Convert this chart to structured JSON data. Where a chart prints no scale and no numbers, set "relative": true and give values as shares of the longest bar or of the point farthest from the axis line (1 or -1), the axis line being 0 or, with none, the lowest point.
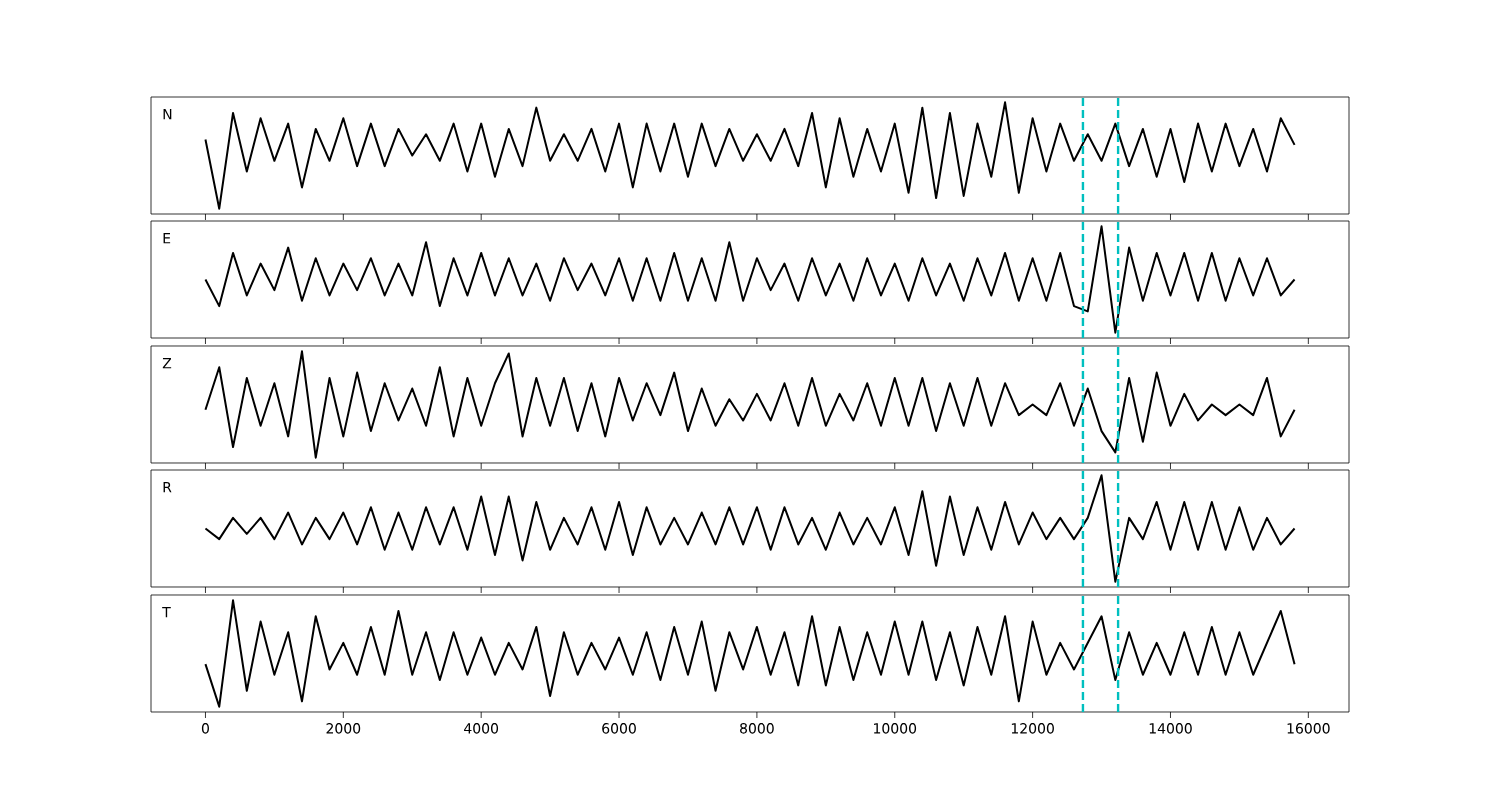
{
  "chart_data": [
    {
      "type": "line",
      "title": "N",
      "relative": true,
      "color": "#000000",
      "tick_labels": false,
      "xlim": [
        -790,
        16590
      ],
      "xticks": [
        0,
        2000,
        4000,
        6000,
        8000,
        10000,
        12000,
        14000,
        16000
      ],
      "x": [
        0,
        200,
        400,
        600,
        800,
        1000,
        1200,
        1400,
        1600,
        1800,
        2000,
        2200,
        2400,
        2600,
        2800,
        3000,
        3200,
        3400,
        3600,
        3800,
        4000,
        4200,
        4400,
        4600,
        4800,
        5000,
        5200,
        5400,
        5600,
        5800,
        6000,
        6200,
        6400,
        6600,
        6800,
        7000,
        7200,
        7400,
        7600,
        7800,
        8000,
        8200,
        8400,
        8600,
        8800,
        9000,
        9200,
        9400,
        9600,
        9800,
        10000,
        10200,
        10400,
        10600,
        10800,
        11000,
        11200,
        11400,
        11600,
        11800,
        12000,
        12200,
        12400,
        12600,
        12800,
        13000,
        13200,
        13400,
        13600,
        13800,
        14000,
        14200,
        14400,
        14600,
        14800,
        15000,
        15200,
        15400,
        15600,
        15800
      ],
      "values": [
        0.65,
        0.0,
        0.9,
        0.35,
        0.85,
        0.45,
        0.8,
        0.2,
        0.75,
        0.45,
        0.85,
        0.4,
        0.8,
        0.4,
        0.75,
        0.5,
        0.7,
        0.45,
        0.8,
        0.35,
        0.8,
        0.3,
        0.75,
        0.4,
        0.95,
        0.45,
        0.7,
        0.45,
        0.75,
        0.35,
        0.8,
        0.2,
        0.8,
        0.35,
        0.8,
        0.3,
        0.8,
        0.4,
        0.75,
        0.45,
        0.7,
        0.45,
        0.75,
        0.4,
        0.9,
        0.2,
        0.85,
        0.3,
        0.75,
        0.35,
        0.8,
        0.15,
        0.95,
        0.1,
        0.9,
        0.12,
        0.8,
        0.3,
        1.0,
        0.15,
        0.85,
        0.35,
        0.8,
        0.45,
        0.7,
        0.45,
        0.8,
        0.4,
        0.75,
        0.3,
        0.75,
        0.25,
        0.8,
        0.35,
        0.8,
        0.4,
        0.75,
        0.35,
        0.85,
        0.6
      ],
      "ref_lines": [
        {
          "axis": "x",
          "value": 12730,
          "color": "#00bfbf",
          "line_style": "dashed"
        },
        {
          "axis": "x",
          "value": 13240,
          "color": "#00bfbf",
          "line_style": "dashed"
        }
      ]
    },
    {
      "type": "line",
      "title": "E",
      "relative": true,
      "color": "#000000",
      "tick_labels": false,
      "xlim": [
        -790,
        16590
      ],
      "xticks": [
        0,
        2000,
        4000,
        6000,
        8000,
        10000,
        12000,
        14000,
        16000
      ],
      "x": [
        0,
        200,
        400,
        600,
        800,
        1000,
        1200,
        1400,
        1600,
        1800,
        2000,
        2200,
        2400,
        2600,
        2800,
        3000,
        3200,
        3400,
        3600,
        3800,
        4000,
        4200,
        4400,
        4600,
        4800,
        5000,
        5200,
        5400,
        5600,
        5800,
        6000,
        6200,
        6400,
        6600,
        6800,
        7000,
        7200,
        7400,
        7600,
        7800,
        8000,
        8200,
        8400,
        8600,
        8800,
        9000,
        9200,
        9400,
        9600,
        9800,
        10000,
        10200,
        10400,
        10600,
        10800,
        11000,
        11200,
        11400,
        11600,
        11800,
        12000,
        12200,
        12400,
        12600,
        12800,
        13000,
        13200,
        13400,
        13600,
        13800,
        14000,
        14200,
        14400,
        14600,
        14800,
        15000,
        15200,
        15400,
        15600,
        15800
      ],
      "values": [
        0.5,
        0.25,
        0.75,
        0.35,
        0.65,
        0.4,
        0.8,
        0.3,
        0.7,
        0.35,
        0.65,
        0.4,
        0.7,
        0.35,
        0.65,
        0.35,
        0.85,
        0.25,
        0.7,
        0.35,
        0.75,
        0.35,
        0.7,
        0.35,
        0.65,
        0.3,
        0.7,
        0.4,
        0.65,
        0.35,
        0.7,
        0.3,
        0.7,
        0.3,
        0.75,
        0.3,
        0.7,
        0.3,
        0.85,
        0.3,
        0.7,
        0.4,
        0.65,
        0.3,
        0.7,
        0.35,
        0.65,
        0.3,
        0.7,
        0.35,
        0.65,
        0.3,
        0.7,
        0.35,
        0.65,
        0.3,
        0.7,
        0.35,
        0.75,
        0.3,
        0.7,
        0.3,
        0.75,
        0.25,
        0.2,
        1.0,
        0.0,
        0.8,
        0.3,
        0.75,
        0.35,
        0.75,
        0.3,
        0.75,
        0.3,
        0.7,
        0.35,
        0.7,
        0.35,
        0.5
      ],
      "ref_lines": [
        {
          "axis": "x",
          "value": 12730,
          "color": "#00bfbf",
          "line_style": "dashed"
        },
        {
          "axis": "x",
          "value": 13240,
          "color": "#00bfbf",
          "line_style": "dashed"
        }
      ]
    },
    {
      "type": "line",
      "title": "Z",
      "relative": true,
      "color": "#000000",
      "tick_labels": false,
      "xlim": [
        -790,
        16590
      ],
      "xticks": [
        0,
        2000,
        4000,
        6000,
        8000,
        10000,
        12000,
        14000,
        16000
      ],
      "x": [
        0,
        200,
        400,
        600,
        800,
        1000,
        1200,
        1400,
        1600,
        1800,
        2000,
        2200,
        2400,
        2600,
        2800,
        3000,
        3200,
        3400,
        3600,
        3800,
        4000,
        4200,
        4400,
        4600,
        4800,
        5000,
        5200,
        5400,
        5600,
        5800,
        6000,
        6200,
        6400,
        6600,
        6800,
        7000,
        7200,
        7400,
        7600,
        7800,
        8000,
        8200,
        8400,
        8600,
        8800,
        9000,
        9200,
        9400,
        9600,
        9800,
        10000,
        10200,
        10400,
        10600,
        10800,
        11000,
        11200,
        11400,
        11600,
        11800,
        12000,
        12200,
        12400,
        12600,
        12800,
        13000,
        13200,
        13400,
        13600,
        13800,
        14000,
        14200,
        14400,
        14600,
        14800,
        15000,
        15200,
        15400,
        15600,
        15800
      ],
      "values": [
        0.45,
        0.85,
        0.1,
        0.75,
        0.3,
        0.7,
        0.2,
        1.0,
        0.0,
        0.75,
        0.2,
        0.8,
        0.25,
        0.7,
        0.35,
        0.65,
        0.3,
        0.85,
        0.2,
        0.75,
        0.3,
        0.7,
        0.98,
        0.2,
        0.75,
        0.3,
        0.75,
        0.25,
        0.7,
        0.2,
        0.75,
        0.35,
        0.7,
        0.4,
        0.8,
        0.25,
        0.65,
        0.3,
        0.55,
        0.35,
        0.6,
        0.35,
        0.7,
        0.3,
        0.75,
        0.3,
        0.6,
        0.35,
        0.7,
        0.3,
        0.75,
        0.3,
        0.75,
        0.25,
        0.7,
        0.3,
        0.75,
        0.3,
        0.7,
        0.4,
        0.5,
        0.4,
        0.7,
        0.3,
        0.65,
        0.25,
        0.05,
        0.75,
        0.15,
        0.8,
        0.3,
        0.6,
        0.35,
        0.5,
        0.4,
        0.5,
        0.4,
        0.75,
        0.2,
        0.45
      ],
      "ref_lines": [
        {
          "axis": "x",
          "value": 12730,
          "color": "#00bfbf",
          "line_style": "dashed"
        },
        {
          "axis": "x",
          "value": 13240,
          "color": "#00bfbf",
          "line_style": "dashed"
        }
      ]
    },
    {
      "type": "line",
      "title": "R",
      "relative": true,
      "color": "#000000",
      "tick_labels": false,
      "xlim": [
        -790,
        16590
      ],
      "xticks": [
        0,
        2000,
        4000,
        6000,
        8000,
        10000,
        12000,
        14000,
        16000
      ],
      "x": [
        0,
        200,
        400,
        600,
        800,
        1000,
        1200,
        1400,
        1600,
        1800,
        2000,
        2200,
        2400,
        2600,
        2800,
        3000,
        3200,
        3400,
        3600,
        3800,
        4000,
        4200,
        4400,
        4600,
        4800,
        5000,
        5200,
        5400,
        5600,
        5800,
        6000,
        6200,
        6400,
        6600,
        6800,
        7000,
        7200,
        7400,
        7600,
        7800,
        8000,
        8200,
        8400,
        8600,
        8800,
        9000,
        9200,
        9400,
        9600,
        9800,
        10000,
        10200,
        10400,
        10600,
        10800,
        11000,
        11200,
        11400,
        11600,
        11800,
        12000,
        12200,
        12400,
        12600,
        12800,
        13000,
        13200,
        13400,
        13600,
        13800,
        14000,
        14200,
        14400,
        14600,
        14800,
        15000,
        15200,
        15400,
        15600,
        15800
      ],
      "values": [
        0.5,
        0.4,
        0.6,
        0.45,
        0.6,
        0.4,
        0.65,
        0.35,
        0.6,
        0.4,
        0.65,
        0.35,
        0.7,
        0.3,
        0.65,
        0.3,
        0.7,
        0.35,
        0.7,
        0.3,
        0.8,
        0.25,
        0.8,
        0.2,
        0.75,
        0.3,
        0.6,
        0.35,
        0.7,
        0.3,
        0.75,
        0.25,
        0.7,
        0.35,
        0.6,
        0.35,
        0.65,
        0.35,
        0.7,
        0.35,
        0.7,
        0.3,
        0.7,
        0.35,
        0.6,
        0.3,
        0.65,
        0.35,
        0.6,
        0.35,
        0.7,
        0.25,
        0.85,
        0.15,
        0.8,
        0.25,
        0.7,
        0.3,
        0.75,
        0.35,
        0.65,
        0.4,
        0.6,
        0.4,
        0.6,
        1.0,
        0.0,
        0.6,
        0.4,
        0.75,
        0.3,
        0.75,
        0.3,
        0.75,
        0.3,
        0.7,
        0.3,
        0.6,
        0.35,
        0.5
      ],
      "ref_lines": [
        {
          "axis": "x",
          "value": 12730,
          "color": "#00bfbf",
          "line_style": "dashed"
        },
        {
          "axis": "x",
          "value": 13240,
          "color": "#00bfbf",
          "line_style": "dashed"
        }
      ]
    },
    {
      "type": "line",
      "title": "T",
      "relative": true,
      "color": "#000000",
      "tick_labels": "x",
      "xlim": [
        -790,
        16590
      ],
      "xticks": [
        0,
        2000,
        4000,
        6000,
        8000,
        10000,
        12000,
        14000,
        16000
      ],
      "x": [
        0,
        200,
        400,
        600,
        800,
        1000,
        1200,
        1400,
        1600,
        1800,
        2000,
        2200,
        2400,
        2600,
        2800,
        3000,
        3200,
        3400,
        3600,
        3800,
        4000,
        4200,
        4400,
        4600,
        4800,
        5000,
        5200,
        5400,
        5600,
        5800,
        6000,
        6200,
        6400,
        6600,
        6800,
        7000,
        7200,
        7400,
        7600,
        7800,
        8000,
        8200,
        8400,
        8600,
        8800,
        9000,
        9200,
        9400,
        9600,
        9800,
        10000,
        10200,
        10400,
        10600,
        10800,
        11000,
        11200,
        11400,
        11600,
        11800,
        12000,
        12200,
        12400,
        12600,
        12800,
        13000,
        13200,
        13400,
        13600,
        13800,
        14000,
        14200,
        14400,
        14600,
        14800,
        15000,
        15200,
        15400,
        15600,
        15800
      ],
      "values": [
        0.4,
        0.0,
        1.0,
        0.15,
        0.8,
        0.3,
        0.7,
        0.05,
        0.85,
        0.35,
        0.6,
        0.3,
        0.75,
        0.3,
        0.9,
        0.3,
        0.7,
        0.25,
        0.7,
        0.3,
        0.65,
        0.3,
        0.6,
        0.35,
        0.75,
        0.1,
        0.7,
        0.3,
        0.6,
        0.35,
        0.65,
        0.3,
        0.7,
        0.25,
        0.75,
        0.3,
        0.8,
        0.15,
        0.7,
        0.35,
        0.75,
        0.3,
        0.7,
        0.2,
        0.85,
        0.2,
        0.75,
        0.25,
        0.7,
        0.3,
        0.8,
        0.3,
        0.8,
        0.25,
        0.7,
        0.2,
        0.75,
        0.3,
        0.85,
        0.05,
        0.8,
        0.3,
        0.6,
        0.35,
        0.6,
        0.85,
        0.25,
        0.7,
        0.3,
        0.6,
        0.3,
        0.7,
        0.3,
        0.75,
        0.3,
        0.7,
        0.3,
        0.6,
        0.9,
        0.4
      ],
      "ref_lines": [
        {
          "axis": "x",
          "value": 12730,
          "color": "#00bfbf",
          "line_style": "dashed"
        },
        {
          "axis": "x",
          "value": 13240,
          "color": "#00bfbf",
          "line_style": "dashed"
        }
      ]
    }
  ]
}
